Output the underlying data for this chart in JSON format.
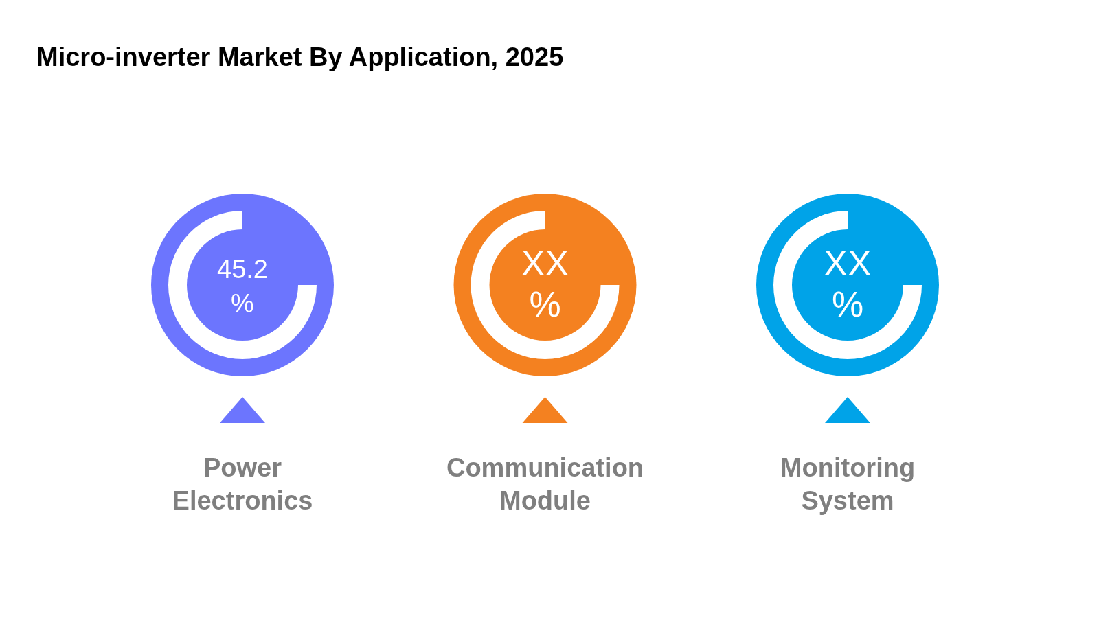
{
  "chart_data": {
    "type": "other",
    "title": "Micro-inverter Market By Application, 2025",
    "categories": [
      "Power Electronics",
      "Communication Module",
      "Monitoring System"
    ],
    "values": [
      45.2,
      null,
      null
    ],
    "value_labels": [
      "45.2 %",
      "XX %",
      "XX %"
    ],
    "colors": [
      "#6c75fe",
      "#f48120",
      "#00a3e8"
    ]
  }
}
